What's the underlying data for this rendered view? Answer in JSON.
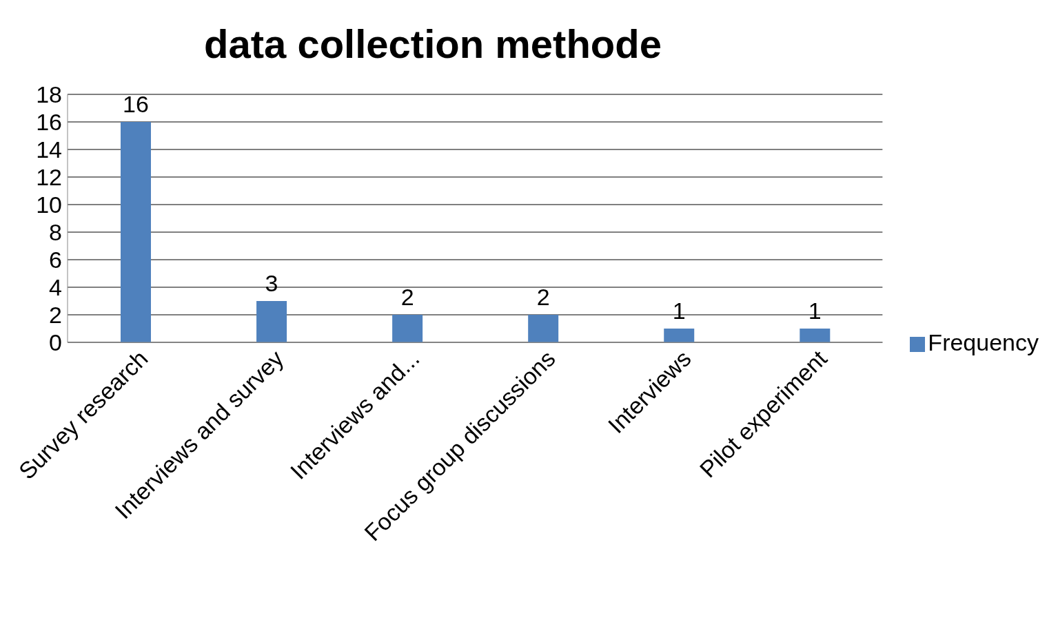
{
  "chart_data": {
    "type": "bar",
    "title": "data collection methode",
    "categories": [
      "Survey research",
      "Interviews and survey",
      "Interviews and...",
      "Focus group discussions",
      "Interviews",
      "Pilot experiment"
    ],
    "series": [
      {
        "name": "Frequency",
        "color": "#4f81bd",
        "values": [
          16,
          3,
          2,
          2,
          1,
          1
        ]
      }
    ],
    "ylim": [
      0,
      18
    ],
    "yticks": [
      0,
      2,
      4,
      6,
      8,
      10,
      12,
      14,
      16,
      18
    ],
    "grid": "y",
    "legend": "right",
    "data_labels": true
  }
}
